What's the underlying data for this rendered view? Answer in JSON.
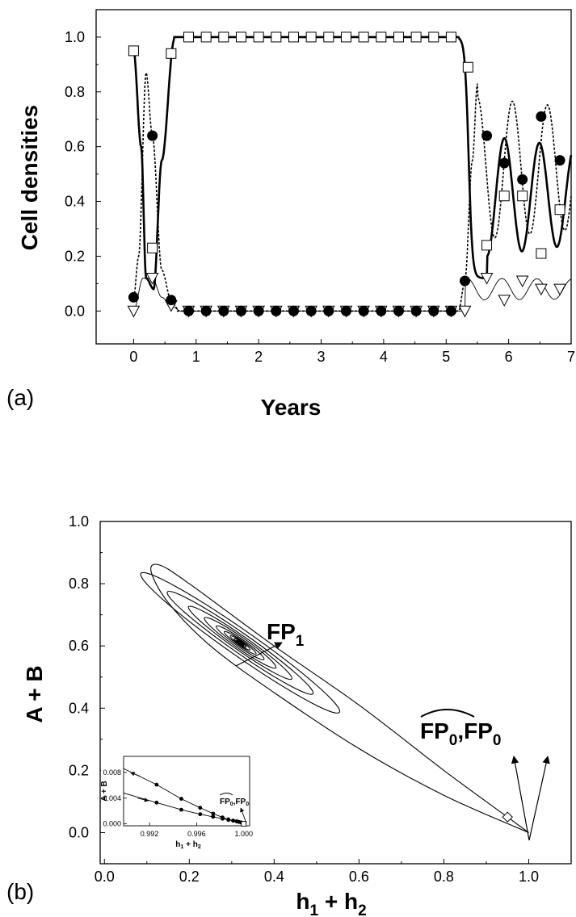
{
  "chart_data": [
    {
      "panel_label": "(a)",
      "type": "line",
      "xlabel": "Years",
      "ylabel": "Cell densities",
      "xlim": [
        -0.6,
        7.0
      ],
      "ylim": [
        -0.12,
        1.1
      ],
      "xticks": [
        "0",
        "1",
        "2",
        "3",
        "4",
        "5",
        "6",
        "7"
      ],
      "yticks": [
        "0.0",
        "0.2",
        "0.4",
        "0.6",
        "0.8",
        "1.0"
      ],
      "grid": false,
      "series": [
        {
          "marker": "open-square",
          "line": "solid-thick",
          "points": [
            [
              0.0,
              0.95
            ],
            [
              0.3,
              0.23
            ],
            [
              0.6,
              0.94
            ],
            [
              0.88,
              1.0
            ],
            [
              1.16,
              1.0
            ],
            [
              1.44,
              1.0
            ],
            [
              1.72,
              1.0
            ],
            [
              2.0,
              1.0
            ],
            [
              2.28,
              1.0
            ],
            [
              2.56,
              1.0
            ],
            [
              2.84,
              1.0
            ],
            [
              3.12,
              1.0
            ],
            [
              3.4,
              1.0
            ],
            [
              3.68,
              1.0
            ],
            [
              3.96,
              1.0
            ],
            [
              4.24,
              1.0
            ],
            [
              4.52,
              1.0
            ],
            [
              4.8,
              1.0
            ],
            [
              5.08,
              1.0
            ],
            [
              5.35,
              0.89
            ],
            [
              5.65,
              0.24
            ],
            [
              5.93,
              0.42
            ],
            [
              6.22,
              0.42
            ],
            [
              6.52,
              0.21
            ],
            [
              6.82,
              0.37
            ]
          ]
        },
        {
          "marker": "filled-circle",
          "line": "dashed",
          "points": [
            [
              0.0,
              0.05
            ],
            [
              0.3,
              0.64
            ],
            [
              0.6,
              0.04
            ],
            [
              0.88,
              0.0
            ],
            [
              1.16,
              0.0
            ],
            [
              1.44,
              0.0
            ],
            [
              1.72,
              0.0
            ],
            [
              2.0,
              0.0
            ],
            [
              2.28,
              0.0
            ],
            [
              2.56,
              0.0
            ],
            [
              2.84,
              0.0
            ],
            [
              3.12,
              0.0
            ],
            [
              3.4,
              0.0
            ],
            [
              3.68,
              0.0
            ],
            [
              3.96,
              0.0
            ],
            [
              4.24,
              0.0
            ],
            [
              4.52,
              0.0
            ],
            [
              4.8,
              0.0
            ],
            [
              5.08,
              0.0
            ],
            [
              5.3,
              0.11
            ],
            [
              5.65,
              0.64
            ],
            [
              5.93,
              0.54
            ],
            [
              6.22,
              0.48
            ],
            [
              6.52,
              0.71
            ],
            [
              6.82,
              0.55
            ]
          ]
        },
        {
          "marker": "open-triangle-down",
          "line": "thin",
          "points": [
            [
              0.0,
              0.0
            ],
            [
              0.3,
              0.12
            ],
            [
              0.6,
              0.02
            ],
            [
              0.88,
              0.0
            ],
            [
              1.16,
              0.0
            ],
            [
              1.44,
              0.0
            ],
            [
              1.72,
              0.0
            ],
            [
              2.0,
              0.0
            ],
            [
              2.28,
              0.0
            ],
            [
              2.56,
              0.0
            ],
            [
              2.84,
              0.0
            ],
            [
              3.12,
              0.0
            ],
            [
              3.4,
              0.0
            ],
            [
              3.68,
              0.0
            ],
            [
              3.96,
              0.0
            ],
            [
              4.24,
              0.0
            ],
            [
              4.52,
              0.0
            ],
            [
              4.8,
              0.0
            ],
            [
              5.08,
              0.0
            ],
            [
              5.3,
              0.0
            ],
            [
              5.65,
              0.12
            ],
            [
              5.93,
              0.04
            ],
            [
              6.22,
              0.11
            ],
            [
              6.52,
              0.08
            ],
            [
              6.82,
              0.08
            ]
          ]
        }
      ]
    },
    {
      "panel_label": "(b)",
      "type": "line",
      "xlabel": "h_1 + h_2",
      "ylabel": "A + B",
      "xlim": [
        -0.01,
        1.1
      ],
      "ylim": [
        -0.1,
        1.0
      ],
      "xticks": [
        "0.0",
        "0.2",
        "0.4",
        "0.6",
        "0.8",
        "1.0"
      ],
      "yticks": [
        "0.0",
        "0.2",
        "0.4",
        "0.6",
        "0.8",
        "1.0"
      ],
      "grid": false,
      "fixed_points": [
        {
          "label": "FP_1",
          "x": 0.32,
          "y": 0.6
        },
        {
          "label": "FP̂_0, FP_0",
          "x": 1.0,
          "y": 0.0
        },
        {
          "marker": "open-diamond",
          "x": 0.95,
          "y": 0.05
        }
      ],
      "annotations": {
        "fp1": {
          "main": "FP",
          "sub": "1"
        },
        "fp0": {
          "hat_main": "FP",
          "hat_sub": "0",
          "sep": ",",
          "main": "FP",
          "sub": "0"
        },
        "xlabel_parts": {
          "h": "h",
          "s1": "1",
          "plus": " + ",
          "s2": "2"
        }
      },
      "inset": {
        "xlabel": "h_1 + h_2",
        "ylabel": "A + B",
        "xlim": [
          0.9898,
          1.0005
        ],
        "ylim": [
          -0.0003,
          0.0105
        ],
        "xticks": [
          "0.992",
          "0.996",
          "1.000"
        ],
        "yticks": [
          "0.000",
          "0.004",
          "0.008"
        ],
        "series": [
          {
            "name": "upper",
            "points": [
              [
                0.9926,
                0.0061
              ],
              [
                0.9947,
                0.0039
              ],
              [
                0.9963,
                0.0025
              ],
              [
                0.9974,
                0.0016
              ],
              [
                0.9982,
                0.001
              ],
              [
                0.9987,
                0.0007
              ],
              [
                0.9991,
                0.0005
              ],
              [
                0.9994,
                0.0004
              ],
              [
                0.9996,
                0.0003
              ],
              [
                0.9998,
                0.0002
              ]
            ]
          },
          {
            "name": "lower",
            "points": [
              [
                0.9926,
                0.0033
              ],
              [
                0.9947,
                0.0022
              ],
              [
                0.9963,
                0.0015
              ],
              [
                0.9974,
                0.0011
              ],
              [
                0.9982,
                0.0008
              ],
              [
                0.9987,
                0.0006
              ],
              [
                0.9991,
                0.0005
              ],
              [
                0.9994,
                0.0004
              ],
              [
                0.9996,
                0.0003
              ],
              [
                0.9998,
                0.0002
              ]
            ]
          }
        ],
        "endpoint": {
          "marker": "open-square",
          "x": 1.0,
          "y": 0.0
        }
      }
    }
  ]
}
